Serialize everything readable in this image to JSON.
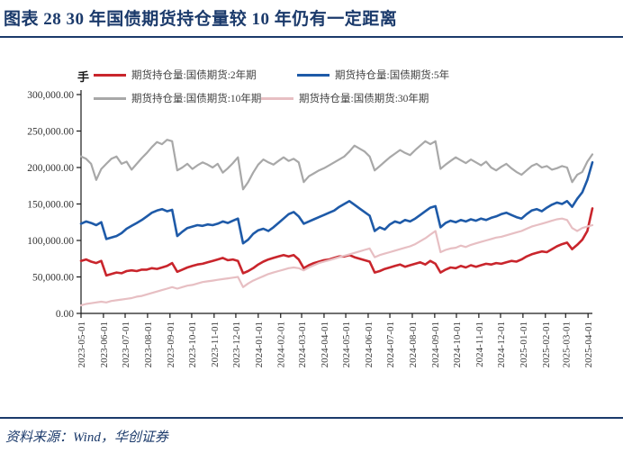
{
  "header": {
    "title": "图表 28  30 年国债期货持仓量较 10 年仍有一定距离"
  },
  "source": {
    "text": "资料来源：Wind，华创证券"
  },
  "chart_data": {
    "type": "line",
    "unit": "手",
    "ylim": [
      0,
      300000
    ],
    "grid": false,
    "legend_position": "top",
    "y_tick_labels": [
      "300,000.00",
      "250,000.00",
      "200,000.00",
      "150,000.00",
      "100,000.00",
      "50,000.00",
      "0.00"
    ],
    "x_tick_labels": [
      "2023-05-01",
      "2023-06-01",
      "2023-07-01",
      "2023-08-01",
      "2023-09-01",
      "2023-10-01",
      "2023-11-01",
      "2023-12-01",
      "2024-01-01",
      "2024-02-01",
      "2024-03-01",
      "2024-04-01",
      "2024-05-01",
      "2024-06-01",
      "2024-07-01",
      "2024-08-01",
      "2024-09-01",
      "2024-10-01",
      "2024-11-01",
      "2024-12-01",
      "2025-01-01",
      "2025-02-01",
      "2025-03-01",
      "2025-04-01"
    ],
    "x_note": "series values are weekly samples starting 2023-05-01",
    "series": [
      {
        "name": "期货持仓量:国债期货:2年期",
        "color": "#c9252c",
        "values": [
          72000,
          74000,
          71000,
          69000,
          72000,
          52000,
          54000,
          56000,
          55000,
          58000,
          59000,
          58000,
          60000,
          60000,
          62000,
          61000,
          63000,
          65000,
          69000,
          57000,
          60000,
          63000,
          65000,
          67000,
          68000,
          70000,
          72000,
          74000,
          76000,
          73000,
          74000,
          72000,
          55000,
          58000,
          62000,
          67000,
          71000,
          74000,
          76000,
          78000,
          80000,
          78000,
          80000,
          74000,
          62000,
          66000,
          69000,
          71000,
          73000,
          74000,
          76000,
          78000,
          78000,
          80000,
          77000,
          75000,
          73000,
          71000,
          56000,
          58000,
          61000,
          63000,
          65000,
          67000,
          64000,
          66000,
          68000,
          70000,
          67000,
          72000,
          68000,
          56000,
          60000,
          63000,
          62000,
          65000,
          63000,
          66000,
          64000,
          66000,
          68000,
          67000,
          69000,
          68000,
          70000,
          72000,
          71000,
          74000,
          78000,
          81000,
          83000,
          85000,
          84000,
          88000,
          92000,
          95000,
          97000,
          88000,
          94000,
          101000,
          113000,
          144000
        ]
      },
      {
        "name": "期货持仓量:国债期货:5年",
        "color": "#1e5aa8",
        "values": [
          123000,
          126000,
          124000,
          121000,
          125000,
          102000,
          104000,
          106000,
          110000,
          116000,
          120000,
          124000,
          128000,
          133000,
          138000,
          141000,
          143000,
          140000,
          142000,
          106000,
          112000,
          117000,
          119000,
          121000,
          120000,
          122000,
          121000,
          123000,
          126000,
          124000,
          127000,
          130000,
          96000,
          101000,
          109000,
          114000,
          116000,
          113000,
          118000,
          124000,
          130000,
          136000,
          139000,
          133000,
          123000,
          126000,
          129000,
          132000,
          135000,
          138000,
          141000,
          146000,
          150000,
          154000,
          149000,
          144000,
          139000,
          134000,
          113000,
          118000,
          115000,
          122000,
          126000,
          124000,
          128000,
          126000,
          130000,
          135000,
          140000,
          145000,
          147000,
          118000,
          124000,
          127000,
          125000,
          128000,
          126000,
          129000,
          127000,
          130000,
          128000,
          131000,
          133000,
          136000,
          138000,
          135000,
          132000,
          130000,
          136000,
          141000,
          143000,
          140000,
          145000,
          149000,
          152000,
          150000,
          154000,
          146000,
          157000,
          166000,
          183000,
          207000
        ]
      },
      {
        "name": "期货持仓量:国债期货:10年期",
        "color": "#a8a8a8",
        "values": [
          215000,
          212000,
          205000,
          183000,
          198000,
          205000,
          212000,
          215000,
          205000,
          208000,
          197000,
          205000,
          213000,
          220000,
          228000,
          235000,
          232000,
          238000,
          236000,
          196000,
          200000,
          205000,
          198000,
          203000,
          207000,
          204000,
          200000,
          205000,
          193000,
          199000,
          206000,
          214000,
          170000,
          180000,
          193000,
          204000,
          211000,
          207000,
          204000,
          209000,
          214000,
          209000,
          212000,
          207000,
          180000,
          188000,
          192000,
          196000,
          199000,
          203000,
          207000,
          211000,
          215000,
          222000,
          230000,
          226000,
          222000,
          215000,
          196000,
          202000,
          208000,
          214000,
          219000,
          224000,
          220000,
          217000,
          224000,
          230000,
          236000,
          232000,
          236000,
          198000,
          204000,
          209000,
          214000,
          210000,
          206000,
          211000,
          207000,
          203000,
          208000,
          200000,
          196000,
          201000,
          205000,
          199000,
          194000,
          190000,
          196000,
          202000,
          205000,
          200000,
          202000,
          197000,
          199000,
          202000,
          200000,
          180000,
          190000,
          194000,
          208000,
          218000
        ]
      },
      {
        "name": "期货持仓量:国债期货:30年期",
        "color": "#e7bfc3",
        "values": [
          11000,
          13000,
          14000,
          15000,
          16000,
          15000,
          17000,
          18000,
          19000,
          20000,
          21000,
          23000,
          24000,
          26000,
          28000,
          30000,
          32000,
          34000,
          36000,
          34000,
          36000,
          38000,
          39000,
          41000,
          43000,
          44000,
          45000,
          46000,
          47000,
          48000,
          49000,
          50000,
          36000,
          41000,
          45000,
          48000,
          51000,
          54000,
          56000,
          58000,
          60000,
          62000,
          63000,
          62000,
          59000,
          63000,
          66000,
          69000,
          71000,
          73000,
          75000,
          77000,
          79000,
          81000,
          83000,
          85000,
          87000,
          89000,
          77000,
          80000,
          82000,
          84000,
          86000,
          88000,
          90000,
          92000,
          95000,
          99000,
          103000,
          108000,
          113000,
          84000,
          87000,
          89000,
          90000,
          93000,
          91000,
          94000,
          96000,
          98000,
          100000,
          102000,
          104000,
          105000,
          107000,
          109000,
          111000,
          113000,
          116000,
          119000,
          121000,
          123000,
          125000,
          127000,
          129000,
          130000,
          128000,
          117000,
          113000,
          117000,
          119000,
          121000
        ]
      }
    ]
  }
}
